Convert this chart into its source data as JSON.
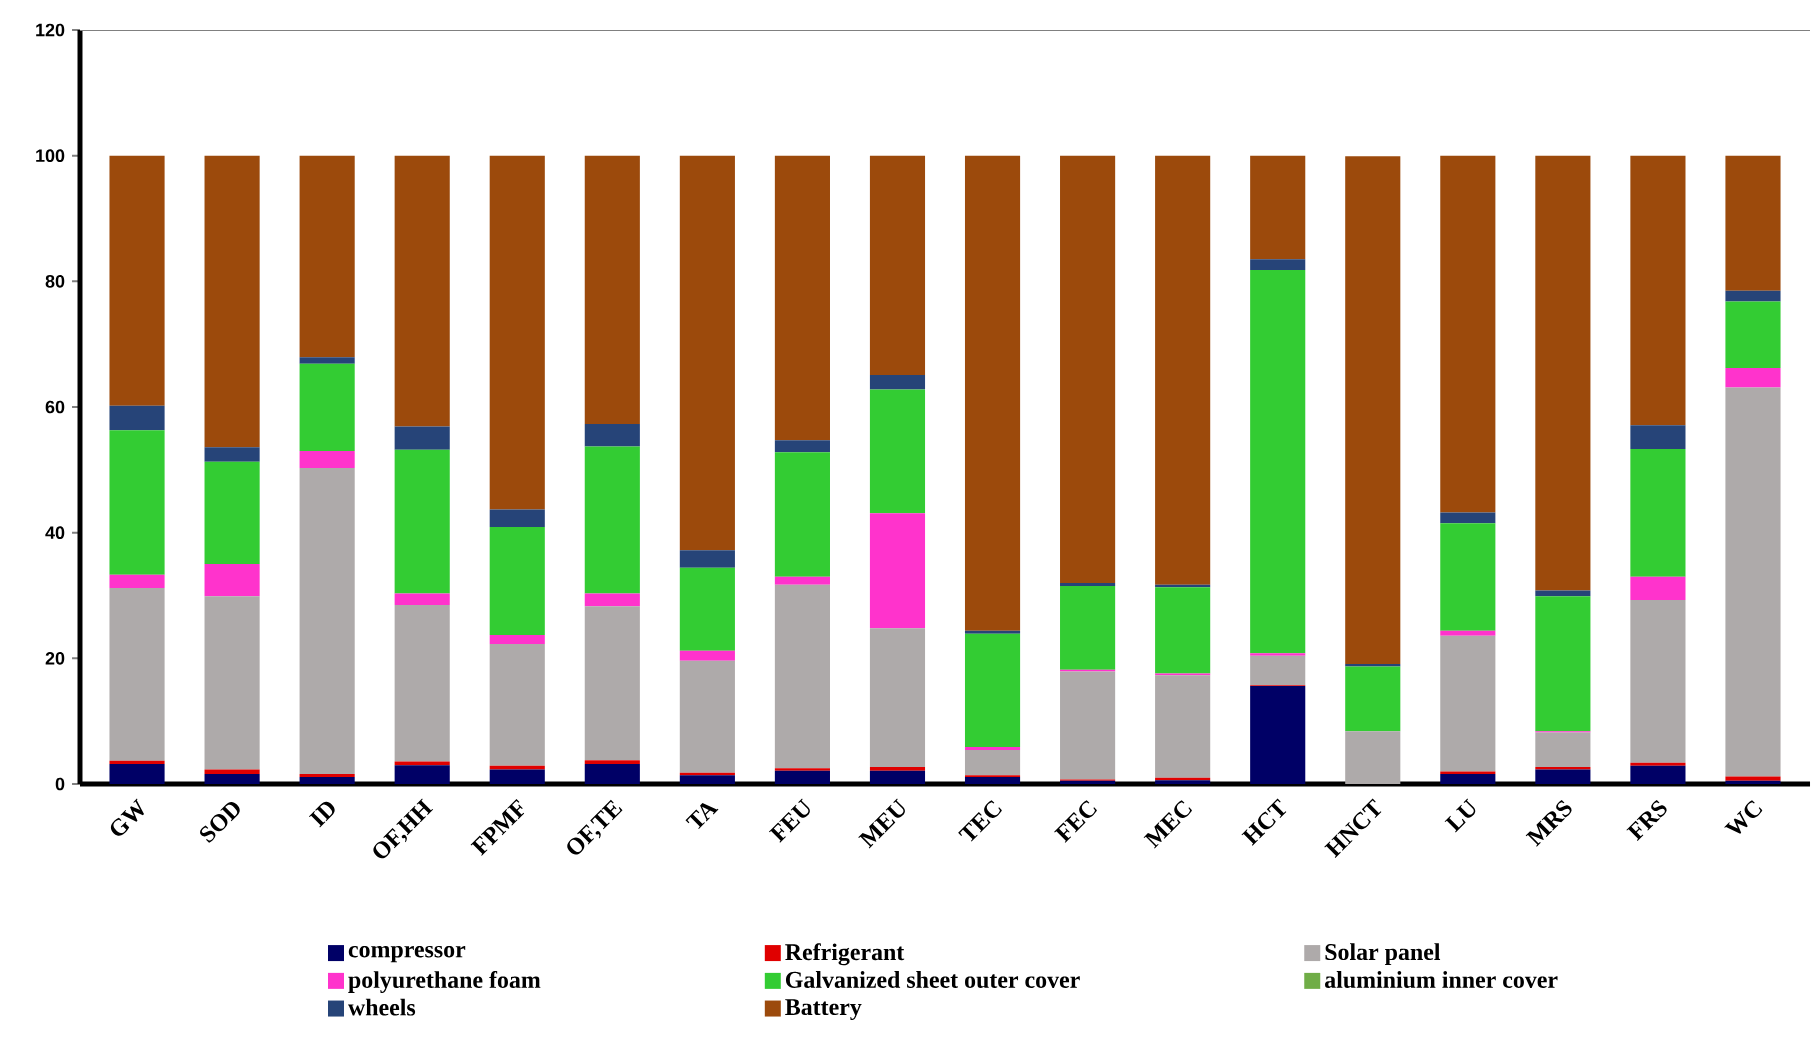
{
  "chart_data": {
    "type": "bar",
    "stacked": true,
    "legend": "bottom",
    "categories": [
      "GW",
      "SOD",
      "ID",
      "OF,HH",
      "FPMF",
      "OF,TE",
      "TA",
      "FEU",
      "MEU",
      "TEC",
      "FEC",
      "MEC",
      "HCT",
      "HNCT",
      "LU",
      "MRS",
      "FRS",
      "WC"
    ],
    "ylim": [
      0,
      120
    ],
    "yticks": [
      0,
      20,
      40,
      60,
      80,
      100,
      120
    ],
    "series": [
      {
        "name": "compressor",
        "color": "#000066",
        "values": [
          3.2,
          1.6,
          1.1,
          3.0,
          2.3,
          3.2,
          1.4,
          2.1,
          2.1,
          1.1,
          0.5,
          0.6,
          15.6,
          0,
          1.6,
          2.3,
          2.9,
          0.5
        ]
      },
      {
        "name": "Refrigerant",
        "color": "#e00000",
        "values": [
          0.5,
          0.7,
          0.5,
          0.6,
          0.6,
          0.6,
          0.4,
          0.4,
          0.6,
          0.3,
          0.2,
          0.4,
          0.1,
          0,
          0.4,
          0.4,
          0.5,
          0.7
        ]
      },
      {
        "name": "Solar panel",
        "color": "#aeaaaa",
        "values": [
          27.5,
          27.6,
          48.7,
          24.9,
          19.4,
          24.5,
          17.8,
          29.2,
          22.1,
          4.0,
          17.2,
          16.3,
          4.7,
          8.4,
          21.6,
          5.5,
          25.9,
          61.9
        ]
      },
      {
        "name": "polyurethane foam",
        "color": "#ff33cc",
        "values": [
          2.1,
          5.1,
          2.7,
          1.8,
          1.4,
          2.0,
          1.6,
          1.3,
          18.3,
          0.5,
          0.3,
          0.3,
          0.4,
          null,
          0.8,
          0.2,
          3.7,
          3.1
        ]
      },
      {
        "name": "Galvanized sheet outer cover",
        "color": "#33cc33",
        "values": [
          23.0,
          16.3,
          13.9,
          22.9,
          17.2,
          23.4,
          13.2,
          19.8,
          19.7,
          18.0,
          13.3,
          13.7,
          61.0,
          10.3,
          17.1,
          21.5,
          20.3,
          10.6
        ]
      },
      {
        "name": "aluminium inner cover",
        "color": "#70ad47",
        "values": [
          0,
          0,
          0,
          0,
          0,
          0,
          0,
          0,
          0,
          0,
          0,
          0,
          0,
          0,
          0,
          0,
          0,
          0
        ]
      },
      {
        "name": "wheels",
        "color": "#264478",
        "values": [
          3.9,
          2.3,
          1.0,
          3.7,
          2.8,
          3.6,
          2.8,
          1.9,
          2.3,
          0.5,
          0.5,
          0.4,
          1.7,
          0.4,
          1.7,
          0.9,
          3.8,
          1.7
        ]
      },
      {
        "name": "Battery",
        "color": "#9c4a0c",
        "values": [
          39.8,
          46.4,
          32.1,
          43.1,
          56.3,
          42.7,
          62.8,
          45.3,
          34.9,
          75.6,
          68.0,
          68.3,
          16.5,
          80.8,
          56.8,
          69.2,
          42.9,
          21.5
        ]
      }
    ]
  }
}
